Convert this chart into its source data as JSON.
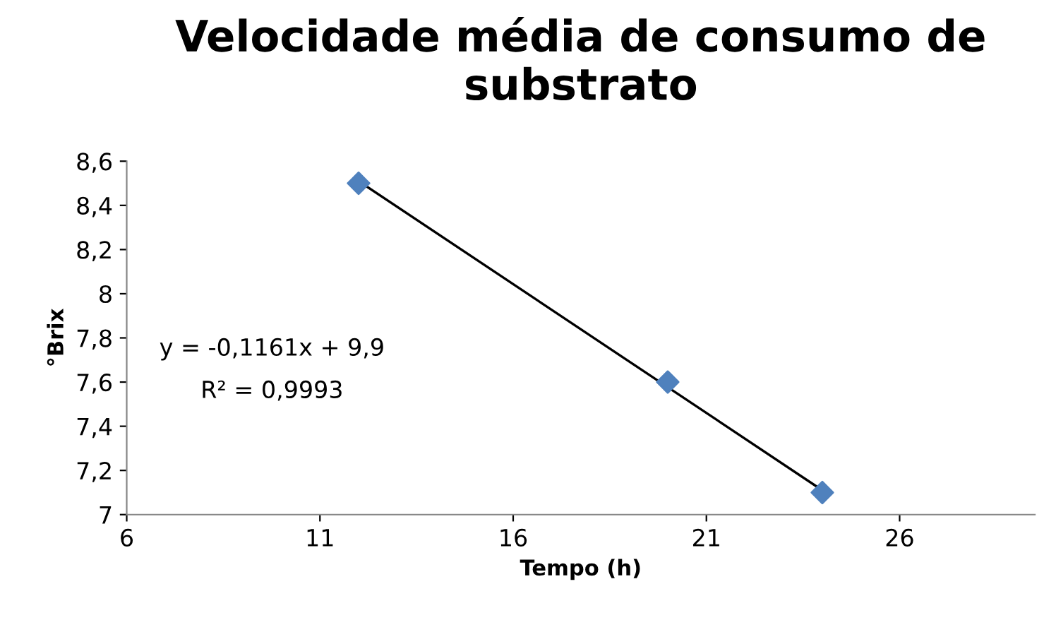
{
  "chart_data": {
    "type": "scatter",
    "title": "Velocidade média de consumo de substrato",
    "xlabel": "Tempo (h)",
    "ylabel": "°Brix",
    "series": [
      {
        "color": "#4f81bd",
        "marker": "diamond",
        "x": [
          12,
          20,
          24
        ],
        "values": [
          8.5,
          7.6,
          7.1
        ]
      },
      {
        "type": "line",
        "color": "#000000",
        "marker": "none",
        "line_style": "solid",
        "x": [
          12,
          24
        ],
        "values": [
          8.51,
          7.11
        ]
      }
    ],
    "annotations": [
      "y = -0,1161x + 9,9",
      "R² = 0,9993"
    ],
    "xlim": [
      6,
      29.5
    ],
    "xticks": [
      6,
      11,
      16,
      21,
      26
    ],
    "ylim": [
      7,
      8.6
    ],
    "yticks": [
      {
        "value": 7,
        "label": "7"
      },
      {
        "value": 7.2,
        "label": "7,2"
      },
      {
        "value": 7.4,
        "label": "7,4"
      },
      {
        "value": 7.6,
        "label": "7,6"
      },
      {
        "value": 7.8,
        "label": "7,8"
      },
      {
        "value": 8,
        "label": "8"
      },
      {
        "value": 8.2,
        "label": "8,2"
      },
      {
        "value": 8.4,
        "label": "8,4"
      },
      {
        "value": 8.6,
        "label": "8,6"
      }
    ],
    "grid": false,
    "legend": false
  }
}
